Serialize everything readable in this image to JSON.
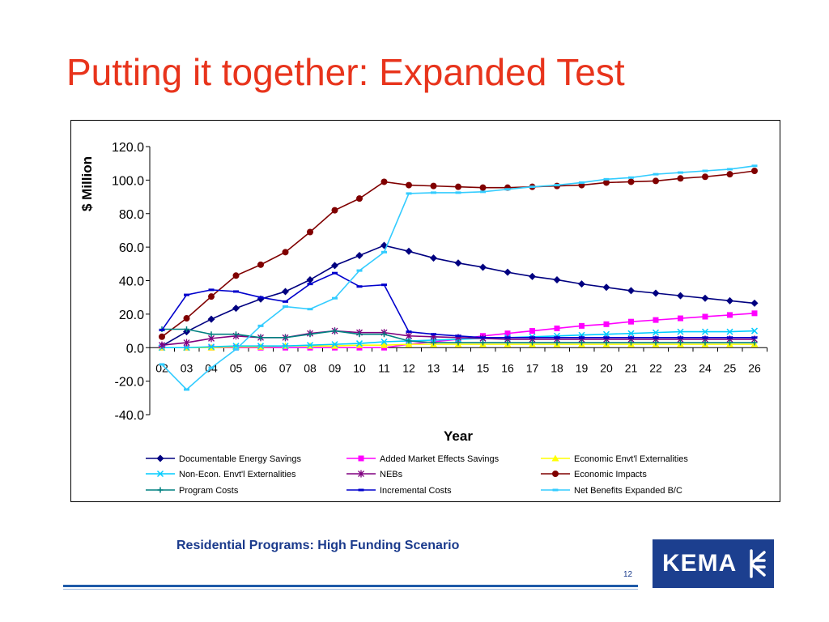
{
  "page": {
    "title": "Putting it together:  Expanded Test",
    "subtitle": "Residential Programs:  High Funding Scenario",
    "page_number": "12",
    "logo_text": "KEMA"
  },
  "chart_data": {
    "type": "line",
    "title": "",
    "xlabel": "Year",
    "ylabel": "$ Million",
    "ylim": [
      -40,
      120
    ],
    "yticks": [
      -40,
      -20,
      0,
      20,
      40,
      60,
      80,
      100,
      120
    ],
    "ytick_labels": [
      "-40.0",
      "-20.0",
      "0.0",
      "20.0",
      "40.0",
      "60.0",
      "80.0",
      "100.0",
      "120.0"
    ],
    "categories": [
      "02",
      "03",
      "04",
      "05",
      "06",
      "07",
      "08",
      "09",
      "10",
      "11",
      "12",
      "13",
      "14",
      "15",
      "16",
      "17",
      "18",
      "19",
      "20",
      "21",
      "22",
      "23",
      "24",
      "25",
      "26"
    ],
    "legend_position": "bottom",
    "series": [
      {
        "name": "Documentable Energy Savings",
        "color": "#000080",
        "marker": "diamond",
        "values": [
          1,
          9.5,
          17,
          23.5,
          29,
          33.5,
          40.5,
          49,
          55,
          61,
          57.5,
          53.5,
          50.5,
          48,
          45,
          42.5,
          40.5,
          38,
          36,
          34,
          32.5,
          31,
          29.5,
          28,
          26.5
        ]
      },
      {
        "name": "Added Market Effects Savings",
        "color": "#ff00ff",
        "marker": "square",
        "values": [
          0,
          0,
          0,
          0,
          0,
          0,
          0,
          0,
          0,
          0,
          2,
          3.5,
          5,
          7,
          8.5,
          10,
          11.5,
          13,
          14,
          15.5,
          16.5,
          17.5,
          18.5,
          19.5,
          20.5
        ]
      },
      {
        "name": "Economic Envt'l Externalities",
        "color": "#ffff00",
        "marker": "triangle",
        "values": [
          0,
          0,
          0,
          0.5,
          0.5,
          1,
          1,
          1,
          1.5,
          1.5,
          2,
          2,
          2,
          2,
          2,
          2,
          2,
          2,
          2,
          2,
          2,
          2,
          2,
          2,
          2
        ]
      },
      {
        "name": "Non-Econ. Envt'l Externalities",
        "color": "#00ccff",
        "marker": "x",
        "values": [
          0,
          0,
          0.5,
          1,
          1,
          1,
          1.5,
          2,
          2.5,
          3.5,
          4,
          4.5,
          5,
          5.5,
          6,
          6.5,
          7,
          7.5,
          8,
          8.5,
          9,
          9.5,
          9.5,
          9.5,
          10
        ]
      },
      {
        "name": "NEBs",
        "color": "#800080",
        "marker": "star",
        "values": [
          1.5,
          3,
          5.5,
          7,
          6,
          6,
          8.5,
          10,
          9,
          9,
          7,
          6.5,
          6,
          5.5,
          5,
          5,
          5,
          5,
          5,
          5,
          5,
          5,
          5,
          5,
          5
        ]
      },
      {
        "name": "Economic Impacts",
        "color": "#800000",
        "marker": "circle",
        "values": [
          6.5,
          17.5,
          30.5,
          43,
          49.5,
          57,
          69,
          82,
          89,
          99,
          97,
          96.5,
          96,
          95.5,
          95.5,
          96,
          96.5,
          97,
          98.5,
          99,
          99.5,
          101,
          102,
          103.5,
          105.5
        ]
      },
      {
        "name": "Program Costs",
        "color": "#008080",
        "marker": "plus",
        "values": [
          11,
          11,
          8,
          8,
          6,
          6,
          8,
          10,
          8,
          8,
          4,
          3,
          3,
          3,
          3,
          3,
          3,
          3,
          3,
          3,
          3,
          3,
          3,
          3,
          3
        ]
      },
      {
        "name": "Incremental Costs",
        "color": "#0000cc",
        "marker": "dash",
        "values": [
          10.5,
          31.5,
          34.5,
          33.5,
          30,
          27.5,
          38,
          44.5,
          36.5,
          37.5,
          9.5,
          8,
          7,
          6,
          6,
          6,
          6,
          6,
          6,
          6,
          6,
          6,
          6,
          6,
          6
        ]
      },
      {
        "name": "Net Benefits Expanded B/C",
        "color": "#33ccff",
        "marker": "dash",
        "values": [
          -10,
          -25,
          -12,
          -1,
          13,
          24.5,
          23,
          29.5,
          46,
          57,
          92,
          92.5,
          92.5,
          93,
          94.5,
          96,
          97,
          98.5,
          100.5,
          101.5,
          103.5,
          104.5,
          105.5,
          106.5,
          108.5
        ]
      }
    ]
  }
}
